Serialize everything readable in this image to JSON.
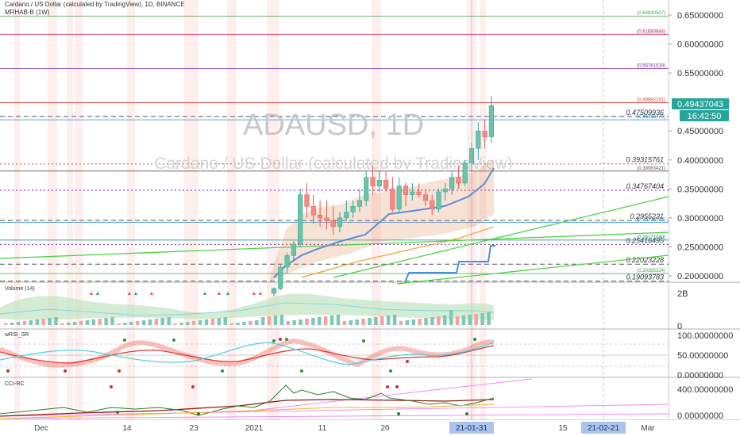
{
  "header": {
    "title": "Cardano / US Dollar (calculated by TradingView), 1D, BINANCE",
    "indicator": "MRHAB-B (1W)"
  },
  "watermark": {
    "symbol": "ADAUSD, 1D",
    "name": "Cardano / US Dollar (calculated by TradingView)"
  },
  "panes": {
    "volume": "Volume (14)",
    "wrsi": "wRSI_SR",
    "cci": "CCI-RC"
  },
  "price_axis": [
    "0.65000000",
    "0.60000000",
    "0.55000000",
    "0.45000000",
    "0.40000000",
    "0.35000000",
    "0.30000000",
    "0.25000000",
    "0.20000000"
  ],
  "volume_axis": [
    "2B",
    "0"
  ],
  "wrsi_axis": [
    "100.00000000",
    "50.00000000",
    "0.00000000"
  ],
  "cci_axis": [
    "400.00000000",
    "0.00000000"
  ],
  "last_price": "0.49437043",
  "countdown": "16:42:50",
  "time_axis": [
    "Dec",
    "14",
    "23",
    "2021",
    "11",
    "20",
    "15",
    "Mar"
  ],
  "time_highlight": [
    "21-01-31",
    "21-02-21"
  ],
  "levels": [
    {
      "label": "(0.64830507)",
      "value": 0.6483,
      "color": "#43a047",
      "style": "solid",
      "small": true
    },
    {
      "label": "(0.61680884)",
      "value": 0.6168,
      "color": "#c2185b",
      "style": "solid",
      "small": true
    },
    {
      "label": "(0.55781519)",
      "value": 0.5578,
      "color": "#7b1fa2",
      "style": "solid",
      "small": true
    },
    {
      "label": "(0.49882151)",
      "value": 0.4988,
      "color": "#e53935",
      "style": "solid",
      "small": true
    },
    {
      "label": "0.47509936",
      "value": 0.4751,
      "color": "#555555",
      "style": "dashed",
      "small": false
    },
    {
      "label": "(0.46932470)",
      "value": 0.4693,
      "color": "#1e88e5",
      "style": "solid",
      "small": true
    },
    {
      "label": "0.39315761",
      "value": 0.3932,
      "color": "#e53935",
      "style": "dotted",
      "small": false
    },
    {
      "label": "(0.38083421)",
      "value": 0.3808,
      "color": "#555555",
      "style": "solid",
      "small": true
    },
    {
      "label": "0.34767404",
      "value": 0.3477,
      "color": "#7b1fa2",
      "style": "dotted",
      "small": false
    },
    {
      "label": "0.2955231",
      "value": 0.2955,
      "color": "#555555",
      "style": "dashed",
      "small": false
    },
    {
      "label": "(0.29234570)",
      "value": 0.2923,
      "color": "#1e88e5",
      "style": "solid",
      "small": true
    },
    {
      "label": "0.25416495",
      "value": 0.2542,
      "color": "#7b1fa2",
      "style": "dotted",
      "small": false
    },
    {
      "label": "(0.26171040)",
      "value": 0.2617,
      "color": "#00897b",
      "style": "solid",
      "small": true
    },
    {
      "label": "0.22023228",
      "value": 0.2202,
      "color": "#555555",
      "style": "dashed",
      "small": false
    },
    {
      "label": "(0.20385324)",
      "value": 0.2039,
      "color": "#43a047",
      "style": "solid",
      "small": true
    },
    {
      "label": "0.19093783",
      "value": 0.1909,
      "color": "#555555",
      "style": "dashed",
      "small": false
    }
  ],
  "colors": {
    "up": "#26a69a",
    "down": "#ef5350",
    "last": "#26a69a",
    "axis_highlight": "#aac4ec"
  },
  "chart_data": {
    "type": "candlestick",
    "title": "Cardano / US Dollar (calculated by TradingView), 1D, BINANCE",
    "ylim": [
      0.185,
      0.68
    ],
    "x_ticks": [
      "Dec",
      "14",
      "23",
      "2021",
      "11",
      "20",
      "21-01-31",
      "15",
      "21-02-21",
      "Mar"
    ],
    "ohlc_recent": [
      [
        0.17,
        0.18,
        0.165,
        0.178
      ],
      [
        0.178,
        0.22,
        0.175,
        0.215
      ],
      [
        0.215,
        0.24,
        0.205,
        0.235
      ],
      [
        0.235,
        0.26,
        0.225,
        0.255
      ],
      [
        0.255,
        0.35,
        0.25,
        0.34
      ],
      [
        0.34,
        0.36,
        0.3,
        0.32
      ],
      [
        0.32,
        0.34,
        0.29,
        0.305
      ],
      [
        0.305,
        0.33,
        0.285,
        0.3
      ],
      [
        0.3,
        0.33,
        0.28,
        0.295
      ],
      [
        0.295,
        0.32,
        0.27,
        0.285
      ],
      [
        0.285,
        0.31,
        0.275,
        0.3
      ],
      [
        0.3,
        0.33,
        0.295,
        0.31
      ],
      [
        0.31,
        0.33,
        0.3,
        0.32
      ],
      [
        0.32,
        0.35,
        0.31,
        0.33
      ],
      [
        0.33,
        0.38,
        0.32,
        0.37
      ],
      [
        0.37,
        0.39,
        0.34,
        0.355
      ],
      [
        0.355,
        0.38,
        0.345,
        0.365
      ],
      [
        0.365,
        0.38,
        0.345,
        0.35
      ],
      [
        0.35,
        0.37,
        0.31,
        0.315
      ],
      [
        0.315,
        0.37,
        0.31,
        0.355
      ],
      [
        0.355,
        0.36,
        0.32,
        0.34
      ],
      [
        0.34,
        0.36,
        0.33,
        0.345
      ],
      [
        0.345,
        0.36,
        0.335,
        0.34
      ],
      [
        0.34,
        0.35,
        0.32,
        0.33
      ],
      [
        0.33,
        0.34,
        0.305,
        0.315
      ],
      [
        0.315,
        0.35,
        0.31,
        0.345
      ],
      [
        0.345,
        0.36,
        0.33,
        0.35
      ],
      [
        0.35,
        0.38,
        0.34,
        0.37
      ],
      [
        0.37,
        0.39,
        0.35,
        0.36
      ],
      [
        0.36,
        0.4,
        0.355,
        0.395
      ],
      [
        0.395,
        0.43,
        0.38,
        0.42
      ],
      [
        0.42,
        0.465,
        0.4,
        0.45
      ],
      [
        0.45,
        0.47,
        0.42,
        0.44
      ],
      [
        0.44,
        0.51,
        0.43,
        0.494
      ]
    ]
  }
}
